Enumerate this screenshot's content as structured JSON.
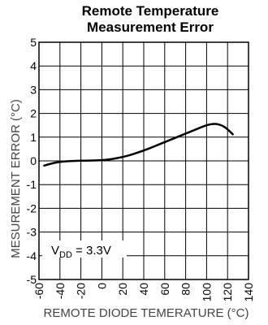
{
  "chart_data": {
    "type": "line",
    "title_line1": "Remote Temperature",
    "title_line2": "Measurement Error",
    "xlabel": "REMOTE DIODE TEMERATURE (°C)",
    "ylabel": "MESUREMENT ERROR (°C)",
    "xlim": [
      -60,
      140
    ],
    "ylim": [
      -5,
      5
    ],
    "xticks": [
      -60,
      -40,
      -20,
      0,
      20,
      40,
      60,
      80,
      100,
      120,
      140
    ],
    "yticks": [
      -5,
      -4,
      -3,
      -2,
      -1,
      0,
      1,
      2,
      3,
      4,
      5
    ],
    "grid": true,
    "annotation": {
      "prefix": "V",
      "subscript": "DD",
      "suffix": " = 3.3V"
    },
    "series": [
      {
        "x": [
          -55,
          -45,
          -35,
          -25,
          -15,
          -5,
          5,
          15,
          25,
          35,
          45,
          55,
          65,
          75,
          85,
          95,
          100,
          105,
          110,
          115,
          120,
          125
        ],
        "values": [
          -0.2,
          -0.08,
          -0.02,
          0.0,
          0.01,
          0.02,
          0.05,
          0.12,
          0.22,
          0.36,
          0.52,
          0.7,
          0.88,
          1.06,
          1.24,
          1.42,
          1.5,
          1.55,
          1.55,
          1.48,
          1.33,
          1.12
        ]
      }
    ]
  }
}
